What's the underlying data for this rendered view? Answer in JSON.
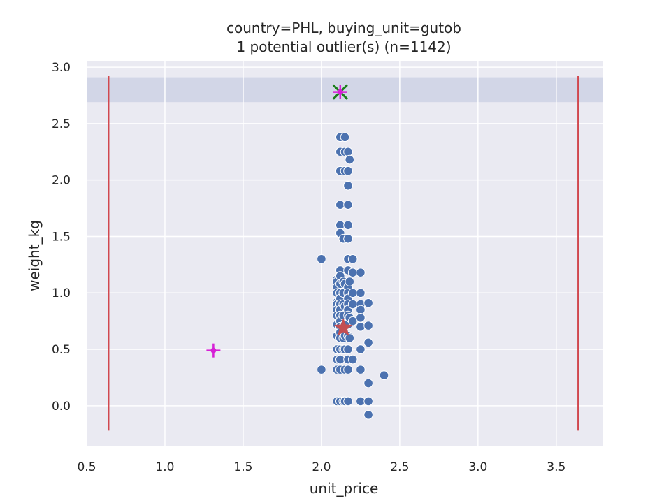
{
  "chart_data": {
    "type": "scatter",
    "title": "country=PHL, buying_unit=gutob",
    "subtitle": "1 potential outlier(s) (n=1142)",
    "xlabel": "unit_price",
    "ylabel": "weight_kg",
    "xlim": [
      0.5,
      3.8
    ],
    "ylim": [
      -0.36,
      3.05
    ],
    "xticks": [
      0.5,
      1.0,
      1.5,
      2.0,
      2.5,
      3.0,
      3.5
    ],
    "xtick_labels": [
      "0.5",
      "1.0",
      "1.5",
      "2.0",
      "2.5",
      "3.0",
      "3.5"
    ],
    "yticks": [
      0.0,
      0.5,
      1.0,
      1.5,
      2.0,
      2.5,
      3.0
    ],
    "ytick_labels": [
      "0.0",
      "0.5",
      "1.0",
      "1.5",
      "2.0",
      "2.5",
      "3.0"
    ],
    "grid": true,
    "background": "#eaeaf2",
    "point_color": "#4c72b0",
    "band": {
      "y_range": [
        2.69,
        2.91
      ],
      "color": "#c4cbe0"
    },
    "vertical_lines": [
      {
        "x": 0.64,
        "y_range": [
          -0.22,
          2.92
        ],
        "color": "#d1484f"
      },
      {
        "x": 3.64,
        "y_range": [
          -0.22,
          2.92
        ],
        "color": "#d1484f"
      }
    ],
    "points": [
      [
        2.0,
        1.3
      ],
      [
        2.0,
        0.32
      ],
      [
        2.1,
        1.12
      ],
      [
        2.1,
        1.1
      ],
      [
        2.1,
        1.05
      ],
      [
        2.1,
        1.0
      ],
      [
        2.1,
        0.92
      ],
      [
        2.1,
        0.9
      ],
      [
        2.1,
        0.85
      ],
      [
        2.1,
        0.8
      ],
      [
        2.1,
        0.72
      ],
      [
        2.1,
        0.62
      ],
      [
        2.1,
        0.5
      ],
      [
        2.1,
        0.41
      ],
      [
        2.1,
        0.32
      ],
      [
        2.1,
        0.04
      ],
      [
        2.12,
        2.38
      ],
      [
        2.12,
        2.25
      ],
      [
        2.12,
        2.08
      ],
      [
        2.12,
        1.78
      ],
      [
        2.12,
        1.6
      ],
      [
        2.12,
        1.53
      ],
      [
        2.12,
        1.2
      ],
      [
        2.12,
        1.15
      ],
      [
        2.12,
        1.08
      ],
      [
        2.12,
        1.0
      ],
      [
        2.12,
        0.95
      ],
      [
        2.12,
        0.9
      ],
      [
        2.12,
        0.85
      ],
      [
        2.12,
        0.8
      ],
      [
        2.12,
        0.75
      ],
      [
        2.12,
        0.7
      ],
      [
        2.12,
        0.65
      ],
      [
        2.12,
        0.6
      ],
      [
        2.12,
        0.5
      ],
      [
        2.12,
        0.41
      ],
      [
        2.12,
        0.32
      ],
      [
        2.12,
        0.04
      ],
      [
        2.14,
        1.48
      ],
      [
        2.14,
        1.1
      ],
      [
        2.14,
        1.0
      ],
      [
        2.14,
        0.9
      ],
      [
        2.14,
        0.8
      ],
      [
        2.14,
        0.7
      ],
      [
        2.14,
        0.6
      ],
      [
        2.14,
        0.5
      ],
      [
        2.14,
        0.04
      ],
      [
        2.15,
        2.38
      ],
      [
        2.15,
        2.25
      ],
      [
        2.15,
        2.08
      ],
      [
        2.15,
        1.08
      ],
      [
        2.15,
        0.88
      ],
      [
        2.15,
        0.72
      ],
      [
        2.15,
        0.62
      ],
      [
        2.15,
        0.5
      ],
      [
        2.15,
        0.32
      ],
      [
        2.15,
        0.04
      ],
      [
        2.17,
        2.25
      ],
      [
        2.17,
        2.08
      ],
      [
        2.17,
        1.95
      ],
      [
        2.17,
        1.78
      ],
      [
        2.17,
        1.6
      ],
      [
        2.17,
        1.48
      ],
      [
        2.17,
        1.3
      ],
      [
        2.17,
        1.2
      ],
      [
        2.17,
        1.05
      ],
      [
        2.17,
        1.0
      ],
      [
        2.17,
        0.95
      ],
      [
        2.17,
        0.9
      ],
      [
        2.17,
        0.85
      ],
      [
        2.17,
        0.8
      ],
      [
        2.17,
        0.72
      ],
      [
        2.17,
        0.62
      ],
      [
        2.17,
        0.5
      ],
      [
        2.17,
        0.41
      ],
      [
        2.17,
        0.32
      ],
      [
        2.17,
        0.04
      ],
      [
        2.18,
        2.18
      ],
      [
        2.18,
        1.1
      ],
      [
        2.18,
        0.78
      ],
      [
        2.18,
        0.6
      ],
      [
        2.2,
        1.3
      ],
      [
        2.2,
        1.18
      ],
      [
        2.2,
        1.0
      ],
      [
        2.2,
        0.9
      ],
      [
        2.2,
        0.75
      ],
      [
        2.2,
        0.41
      ],
      [
        2.25,
        1.18
      ],
      [
        2.25,
        1.0
      ],
      [
        2.25,
        0.9
      ],
      [
        2.25,
        0.85
      ],
      [
        2.25,
        0.78
      ],
      [
        2.25,
        0.7
      ],
      [
        2.25,
        0.5
      ],
      [
        2.25,
        0.32
      ],
      [
        2.25,
        0.04
      ],
      [
        2.3,
        0.91
      ],
      [
        2.3,
        0.71
      ],
      [
        2.3,
        0.56
      ],
      [
        2.3,
        0.2
      ],
      [
        2.3,
        0.04
      ],
      [
        2.3,
        -0.08
      ],
      [
        2.4,
        0.27
      ]
    ],
    "special_markers": [
      {
        "type": "star",
        "x": 2.14,
        "y": 0.69,
        "color": "#c44e52"
      },
      {
        "type": "plus",
        "x": 1.31,
        "y": 0.49,
        "color": "#d620d6"
      },
      {
        "type": "x",
        "x": 2.12,
        "y": 2.78,
        "color": "#1a7f1a"
      },
      {
        "type": "plus",
        "x": 2.12,
        "y": 2.78,
        "color": "#d620d6"
      }
    ]
  }
}
